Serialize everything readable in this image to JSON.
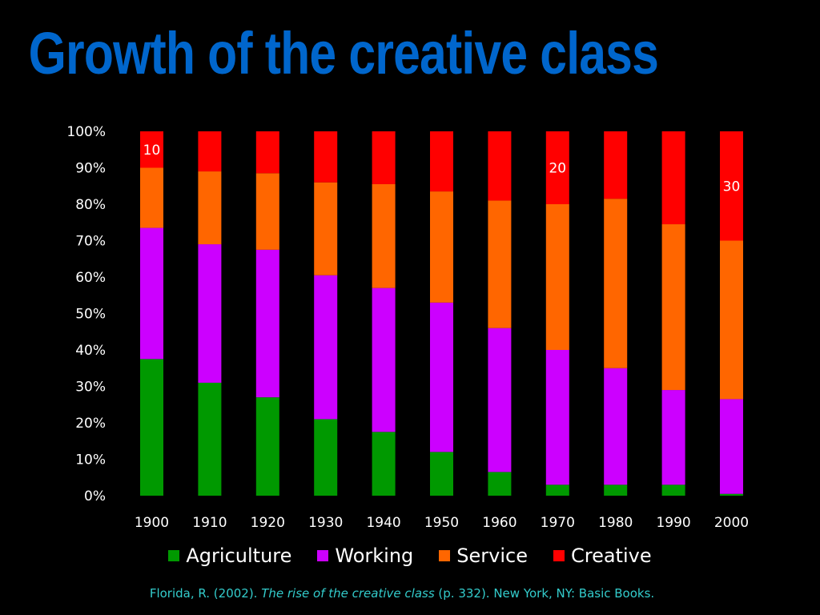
{
  "title": "Growth of the creative class",
  "chart_data": {
    "type": "bar",
    "stacked": true,
    "categories": [
      "1900",
      "1910",
      "1920",
      "1930",
      "1940",
      "1950",
      "1960",
      "1970",
      "1980",
      "1990",
      "2000"
    ],
    "series": [
      {
        "name": "Agriculture",
        "color": "#009900",
        "values": [
          37.5,
          31,
          27,
          21,
          17.5,
          12,
          6.5,
          3,
          3,
          3,
          0.5
        ]
      },
      {
        "name": "Working",
        "color": "#cc00ff",
        "values": [
          36,
          38,
          40.5,
          39.5,
          39.5,
          41,
          39.5,
          37,
          32,
          26,
          26
        ]
      },
      {
        "name": "Service",
        "color": "#ff6600",
        "values": [
          16.5,
          20,
          21,
          25.5,
          28.5,
          30.5,
          35,
          40,
          46.5,
          45.5,
          43.5
        ]
      },
      {
        "name": "Creative",
        "color": "#ff0000",
        "values": [
          10,
          11,
          11.5,
          14,
          14.5,
          16.5,
          19,
          20,
          18.5,
          25.5,
          30
        ]
      }
    ],
    "yticks": [
      "0%",
      "10%",
      "20%",
      "30%",
      "40%",
      "50%",
      "60%",
      "70%",
      "80%",
      "90%",
      "100%"
    ],
    "ylim": [
      0,
      100
    ],
    "annotations": [
      {
        "category": "1900",
        "series": "Creative",
        "text": "10"
      },
      {
        "category": "1970",
        "series": "Creative",
        "text": "20"
      },
      {
        "category": "2000",
        "series": "Creative",
        "text": "30"
      }
    ],
    "legend_position": "bottom",
    "grid": false
  },
  "citation": {
    "prefix": "Florida, R. (2002). ",
    "title": "The rise of the creative class",
    "suffix": " (p. 332). New York, NY: Basic Books."
  }
}
